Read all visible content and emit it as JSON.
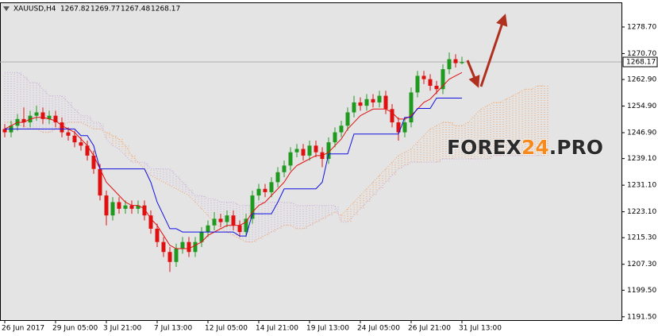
{
  "chart_data": {
    "type": "candlestick",
    "info": {
      "symbol": "XAUUSD,H4",
      "values": [
        1267.82,
        1269.77,
        1267.48,
        1268.17
      ]
    },
    "watermark": {
      "parts": [
        "FOREX",
        "24",
        ".PRO"
      ],
      "colors": [
        "#2b2b2b",
        "#f58a1f",
        "#2b2b2b"
      ]
    },
    "categories": [
      "26 Jun 2017",
      null,
      null,
      null,
      null,
      null,
      null,
      null,
      "29 Jun 05:00",
      null,
      null,
      null,
      null,
      null,
      null,
      null,
      "3 Jul 21:00",
      null,
      null,
      null,
      null,
      null,
      null,
      null,
      "7 Jul 13:00",
      null,
      null,
      null,
      null,
      null,
      null,
      null,
      "12 Jul 05:00",
      null,
      null,
      null,
      null,
      null,
      null,
      null,
      "14 Jul 21:00",
      null,
      null,
      null,
      null,
      null,
      null,
      null,
      "19 Jul 13:00",
      null,
      null,
      null,
      null,
      null,
      null,
      null,
      "24 Jul 05:00",
      null,
      null,
      null,
      null,
      null,
      null,
      null,
      "26 Jul 21:00",
      null,
      null,
      null,
      null,
      null,
      null,
      null,
      "31 Jul 13:00",
      null,
      null,
      null,
      null,
      null,
      null,
      null,
      null,
      null,
      null,
      null,
      null,
      null
    ],
    "open": [
      1248,
      1247,
      1249,
      1251,
      1250,
      1252,
      1253,
      1251,
      1252,
      1250,
      1247,
      1246,
      1244,
      1243,
      1240,
      1236,
      1228,
      1222,
      1226,
      1224,
      1225,
      1224,
      1225,
      1222,
      1218,
      1214,
      1211,
      1208,
      1212,
      1214,
      1211,
      1214,
      1217,
      1219,
      1221,
      1220,
      1222,
      1219,
      1217,
      1221,
      1228,
      1230,
      1229,
      1232,
      1235,
      1237,
      1241,
      1242,
      1240,
      1243,
      1241,
      1239,
      1244,
      1247,
      1249,
      1253,
      1256,
      1255,
      1257,
      1256,
      1258,
      1254,
      1250,
      1247,
      1250,
      1259,
      1264,
      1263,
      1261,
      1260,
      1266,
      1269,
      1267.82,
      null,
      null,
      null,
      null,
      null,
      null,
      null,
      null,
      null,
      null,
      null,
      null,
      null
    ],
    "high": [
      1249.5,
      1250.5,
      1252.5,
      1254.5,
      1253.5,
      1255,
      1254.5,
      1253.5,
      1253.5,
      1251.5,
      1248.5,
      1247.5,
      1245.5,
      1244.5,
      1241.5,
      1237.5,
      1229.5,
      1227.5,
      1227.5,
      1226.5,
      1226.5,
      1226.5,
      1226.5,
      1223.5,
      1219.5,
      1215.5,
      1212.5,
      1213.5,
      1215.5,
      1215.5,
      1215.5,
      1218.5,
      1220.5,
      1223,
      1222.5,
      1223.5,
      1223.5,
      1220.5,
      1222.5,
      1229.5,
      1231.5,
      1231.5,
      1233.5,
      1236.5,
      1238.5,
      1242.5,
      1243.5,
      1243.5,
      1244.5,
      1244.5,
      1242.5,
      1245.5,
      1248.5,
      1250.5,
      1254.5,
      1258,
      1257.5,
      1258.5,
      1258.5,
      1259.5,
      1259.5,
      1255.5,
      1251.5,
      1251.5,
      1260.5,
      1265.5,
      1265.5,
      1264.5,
      1262.5,
      1267.5,
      1271,
      1270.5,
      1269.77,
      null,
      null,
      null,
      null,
      null,
      null,
      null,
      null,
      null,
      null,
      null,
      null,
      null
    ],
    "low": [
      1245.5,
      1245.5,
      1247.5,
      1248.5,
      1248.5,
      1250.5,
      1249.5,
      1249.5,
      1248.5,
      1245.5,
      1244.5,
      1242.5,
      1241.5,
      1238.5,
      1234.5,
      1226.5,
      1219,
      1220.5,
      1222.5,
      1222.5,
      1222.5,
      1222.5,
      1220.5,
      1216.5,
      1212.5,
      1209.5,
      1205,
      1206.5,
      1210.5,
      1209.5,
      1209.5,
      1212.5,
      1215.5,
      1217.5,
      1218.5,
      1218.5,
      1217.5,
      1215.5,
      1215.5,
      1219.5,
      1226.5,
      1227.5,
      1227.5,
      1230.5,
      1233.5,
      1235.5,
      1239.5,
      1238.5,
      1238.5,
      1239.5,
      1236.5,
      1237.5,
      1242.5,
      1245.5,
      1247.5,
      1251.5,
      1253.5,
      1253.5,
      1254.5,
      1254.5,
      1252.5,
      1248.5,
      1244.5,
      1245.5,
      1248.5,
      1257.5,
      1261.5,
      1259.5,
      1258.5,
      1258.5,
      1264.5,
      1266.5,
      1267.48,
      null,
      null,
      null,
      null,
      null,
      null,
      null,
      null,
      null,
      null,
      null,
      null,
      null
    ],
    "close": [
      1247,
      1249,
      1251,
      1250,
      1252,
      1253,
      1251,
      1252,
      1250,
      1247,
      1246,
      1244,
      1243,
      1240,
      1236,
      1228,
      1222,
      1226,
      1224,
      1225,
      1224,
      1225,
      1222,
      1218,
      1214,
      1211,
      1208,
      1212,
      1214,
      1211,
      1214,
      1217,
      1219,
      1221,
      1220,
      1222,
      1219,
      1217,
      1221,
      1228,
      1230,
      1229,
      1232,
      1235,
      1237,
      1241,
      1242,
      1240,
      1243,
      1241,
      1239,
      1244,
      1247,
      1249,
      1253,
      1256,
      1255,
      1257,
      1256,
      1258,
      1254,
      1250,
      1247,
      1250,
      1259,
      1264,
      1263,
      1261,
      1260,
      1266,
      1269,
      1267.82,
      1268.17,
      null,
      null,
      null,
      null,
      null,
      null,
      null,
      null,
      null,
      null,
      null,
      null,
      null
    ],
    "up_color": "#1f9a1f",
    "down_color": "#e01010",
    "lines": [
      {
        "color": "#e01010",
        "values": [
          1248,
          1249,
          1250,
          1250,
          1251,
          1251.5,
          1251.5,
          1251,
          1250.5,
          1249,
          1248,
          1247,
          1245,
          1243,
          1240,
          1236,
          1232,
          1230,
          1228,
          1226,
          1225,
          1225,
          1224,
          1221,
          1219,
          1216,
          1213,
          1212,
          1212,
          1212,
          1213,
          1214,
          1216,
          1217,
          1218,
          1219,
          1219,
          1219,
          1220,
          1223,
          1225,
          1226,
          1228,
          1230,
          1232,
          1235,
          1237,
          1238,
          1239,
          1240,
          1240,
          1241,
          1243,
          1245,
          1248,
          1250,
          1252,
          1253,
          1254,
          1254,
          1254,
          1253,
          1251,
          1251,
          1252,
          1254,
          1256,
          1257,
          1259,
          1261,
          1263,
          1264,
          1265,
          null,
          null,
          null,
          null,
          null,
          null,
          null,
          null,
          null,
          null,
          null,
          null,
          null
        ]
      },
      {
        "color": "#1010e0",
        "values": [
          1248,
          1248,
          1248,
          1248,
          1248,
          1248,
          1248,
          1248,
          1248,
          1248,
          1248,
          1248,
          1246,
          1246,
          1243,
          1236,
          1236,
          1236,
          1236,
          1236,
          1236,
          1236,
          1236,
          1232,
          1226,
          1222,
          1218,
          1218,
          1217,
          1217,
          1217,
          1217,
          1217,
          1217,
          1217,
          1217,
          1217,
          1215.8,
          1215.8,
          1222.5,
          1222.5,
          1222.5,
          1222.5,
          1226,
          1230,
          1230,
          1230,
          1230,
          1230,
          1230,
          1232,
          1240.5,
          1240.5,
          1240.5,
          1240.5,
          1246.5,
          1246.5,
          1246.5,
          1246.5,
          1246.5,
          1246.5,
          1246.5,
          1246.5,
          1251.5,
          1251.5,
          1254.2,
          1254.2,
          1254.2,
          1257.3,
          1257.3,
          1257.3,
          1257.3,
          1257.3,
          null,
          null,
          null,
          null,
          null,
          null,
          null,
          null,
          null,
          null,
          null,
          null,
          null
        ]
      }
    ],
    "cloud": {
      "up_color": "#f5a060",
      "down_color": "#c8a8d8",
      "span_a": [
        1250,
        1250,
        1249,
        1249,
        1248,
        1248,
        1247,
        1247,
        1248,
        1249,
        1250,
        1250,
        1250,
        1249,
        1248,
        1248,
        1247,
        1246,
        1245,
        1243,
        1240,
        1238,
        1236,
        1234,
        1233,
        1232,
        1231,
        1230,
        1229,
        1228,
        1226,
        1224,
        1222,
        1220,
        1218,
        1217,
        1216,
        1215,
        1214,
        1214,
        1215,
        1216,
        1217,
        1218,
        1219,
        1219,
        1218,
        1218,
        1219,
        1220,
        1221,
        1222,
        1223,
        1222,
        1224,
        1226,
        1228,
        1230,
        1232,
        1234,
        1236,
        1238,
        1240,
        1241,
        1242,
        1244,
        1246,
        1248,
        1249,
        1250,
        1250,
        1249,
        1249,
        1250,
        1252,
        1254,
        1255,
        1256,
        1256,
        1257,
        1258,
        1259,
        1260,
        1260,
        1261,
        1261
      ],
      "span_b": [
        1265,
        1265,
        1265,
        1264,
        1262,
        1262,
        1260,
        1258,
        1258,
        1258,
        1256,
        1254,
        1252,
        1252,
        1250,
        1250,
        1245,
        1243,
        1242,
        1240,
        1238,
        1238,
        1238,
        1236,
        1236,
        1236,
        1236,
        1234,
        1232,
        1230,
        1228,
        1228,
        1227,
        1227,
        1226,
        1226,
        1226,
        1225,
        1225,
        1225,
        1226,
        1226,
        1226,
        1226,
        1226,
        1226,
        1225,
        1225,
        1225,
        1225,
        1225,
        1225,
        1225,
        1220,
        1220,
        1222,
        1224,
        1226,
        1228,
        1230,
        1232,
        1234,
        1236,
        1237,
        1238,
        1238,
        1238,
        1238,
        1238,
        1239,
        1239,
        1239,
        1239,
        1239,
        1239,
        1239,
        1239,
        1240,
        1240,
        1240,
        1240,
        1240,
        1240,
        1240,
        1240,
        1240
      ]
    },
    "last_price": 1268.17,
    "ylim": [
      1190.5,
      1286.1
    ],
    "yticks": [
      {
        "value": 1278.7,
        "label": "1278.70"
      },
      {
        "value": 1270.7,
        "label": "1270.70"
      },
      {
        "value": 1262.9,
        "label": "1262.90"
      },
      {
        "value": 1254.9,
        "label": "1254.90"
      },
      {
        "value": 1246.9,
        "label": "1246.90"
      },
      {
        "value": 1239.1,
        "label": "1239.10"
      },
      {
        "value": 1231.1,
        "label": "1231.10"
      },
      {
        "value": 1223.1,
        "label": "1223.10"
      },
      {
        "value": 1215.3,
        "label": "1215.30"
      },
      {
        "value": 1207.3,
        "label": "1207.30"
      },
      {
        "value": 1199.5,
        "label": "1199.50"
      },
      {
        "value": 1191.5,
        "label": "1191.50"
      }
    ]
  }
}
